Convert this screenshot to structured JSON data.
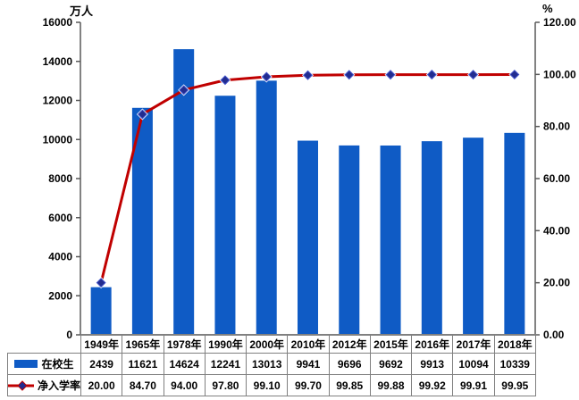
{
  "chart_data": {
    "type": "bar",
    "title": "",
    "xlabel": "",
    "ylabel": "万人",
    "y2label": "%",
    "categories": [
      "1949年",
      "1965年",
      "1978年",
      "1990年",
      "2000年",
      "2010年",
      "2012年",
      "2015年",
      "2016年",
      "2017年",
      "2018年"
    ],
    "series": [
      {
        "name": "在校生",
        "kind": "bar",
        "axis": "left",
        "color": "#0F5BC5",
        "values": [
          2439,
          11621,
          14624,
          12241,
          13013,
          9941,
          9696,
          9692,
          9913,
          10094,
          10339
        ]
      },
      {
        "name": "净入学率",
        "kind": "line",
        "axis": "right",
        "color": "#C00000",
        "marker": "diamond",
        "marker_fill": "#222C8F",
        "marker_edge": "#4455CC",
        "values": [
          20.0,
          84.7,
          94.0,
          97.8,
          99.1,
          99.7,
          99.85,
          99.88,
          99.92,
          99.91,
          99.95
        ]
      }
    ],
    "ylim": [
      0,
      16000
    ],
    "y_step": 2000,
    "y_ticks": [
      "0",
      "2000",
      "4000",
      "6000",
      "8000",
      "10000",
      "12000",
      "14000",
      "16000"
    ],
    "y2lim": [
      0,
      120
    ],
    "y2_step": 20,
    "y2_ticks": [
      "0.00",
      "20.00",
      "40.00",
      "60.00",
      "80.00",
      "100.00",
      "120.00"
    ],
    "grid": false,
    "legend_position": "table-left",
    "data_table_shown": true,
    "axis_color": "#595959",
    "table_border_color": "#808080"
  }
}
